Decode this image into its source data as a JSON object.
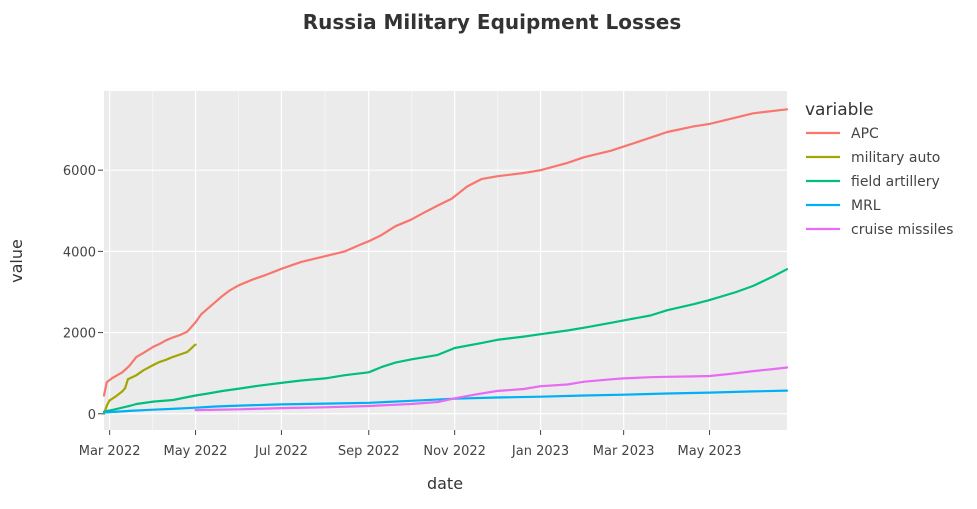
{
  "chart_data": {
    "type": "line",
    "title": "Russia Military Equipment Losses",
    "xlabel": "date",
    "ylabel": "value",
    "legend_title": "variable",
    "legend_position": "right",
    "grid": true,
    "xlim": [
      "2022-02-25",
      "2023-06-25"
    ],
    "ylim": [
      -400,
      7950
    ],
    "x_ticks": [
      {
        "date": "2022-03-01",
        "label": "Mar 2022"
      },
      {
        "date": "2022-05-01",
        "label": "May 2022"
      },
      {
        "date": "2022-07-01",
        "label": "Jul 2022"
      },
      {
        "date": "2022-09-01",
        "label": "Sep 2022"
      },
      {
        "date": "2022-11-01",
        "label": "Nov 2022"
      },
      {
        "date": "2023-01-01",
        "label": "Jan 2023"
      },
      {
        "date": "2023-03-01",
        "label": "Mar 2023"
      },
      {
        "date": "2023-05-01",
        "label": "May 2023"
      }
    ],
    "y_ticks": [
      {
        "value": 0,
        "label": "0"
      },
      {
        "value": 2000,
        "label": "2000"
      },
      {
        "value": 4000,
        "label": "4000"
      },
      {
        "value": 6000,
        "label": "6000"
      }
    ],
    "series": [
      {
        "name": "APC",
        "color": "#f8766d",
        "points": [
          [
            "2022-02-25",
            450
          ],
          [
            "2022-02-27",
            780
          ],
          [
            "2022-03-03",
            880
          ],
          [
            "2022-03-10",
            1020
          ],
          [
            "2022-03-15",
            1180
          ],
          [
            "2022-03-20",
            1400
          ],
          [
            "2022-03-25",
            1500
          ],
          [
            "2022-04-01",
            1650
          ],
          [
            "2022-04-05",
            1710
          ],
          [
            "2022-04-10",
            1810
          ],
          [
            "2022-04-15",
            1880
          ],
          [
            "2022-04-20",
            1940
          ],
          [
            "2022-04-25",
            2020
          ],
          [
            "2022-05-01",
            2250
          ],
          [
            "2022-05-05",
            2450
          ],
          [
            "2022-05-10",
            2600
          ],
          [
            "2022-05-15",
            2750
          ],
          [
            "2022-05-20",
            2900
          ],
          [
            "2022-05-25",
            3030
          ],
          [
            "2022-06-01",
            3170
          ],
          [
            "2022-06-10",
            3300
          ],
          [
            "2022-06-20",
            3420
          ],
          [
            "2022-07-01",
            3570
          ],
          [
            "2022-07-15",
            3740
          ],
          [
            "2022-08-01",
            3880
          ],
          [
            "2022-08-15",
            4000
          ],
          [
            "2022-08-25",
            4150
          ],
          [
            "2022-09-01",
            4250
          ],
          [
            "2022-09-10",
            4400
          ],
          [
            "2022-09-20",
            4620
          ],
          [
            "2022-10-01",
            4780
          ],
          [
            "2022-10-10",
            4950
          ],
          [
            "2022-10-20",
            5130
          ],
          [
            "2022-10-30",
            5300
          ],
          [
            "2022-11-10",
            5600
          ],
          [
            "2022-11-20",
            5780
          ],
          [
            "2022-12-01",
            5850
          ],
          [
            "2022-12-20",
            5930
          ],
          [
            "2023-01-01",
            6000
          ],
          [
            "2023-01-20",
            6180
          ],
          [
            "2023-02-01",
            6320
          ],
          [
            "2023-02-20",
            6480
          ],
          [
            "2023-03-01",
            6580
          ],
          [
            "2023-03-20",
            6800
          ],
          [
            "2023-04-01",
            6940
          ],
          [
            "2023-04-20",
            7080
          ],
          [
            "2023-05-01",
            7140
          ],
          [
            "2023-05-20",
            7300
          ],
          [
            "2023-06-01",
            7400
          ],
          [
            "2023-06-25",
            7500
          ]
        ]
      },
      {
        "name": "military auto",
        "color": "#a3a500",
        "points": [
          [
            "2022-02-25",
            0
          ],
          [
            "2022-02-27",
            200
          ],
          [
            "2022-03-01",
            330
          ],
          [
            "2022-03-05",
            420
          ],
          [
            "2022-03-10",
            550
          ],
          [
            "2022-03-12",
            630
          ],
          [
            "2022-03-14",
            850
          ],
          [
            "2022-03-20",
            950
          ],
          [
            "2022-03-25",
            1070
          ],
          [
            "2022-04-01",
            1200
          ],
          [
            "2022-04-05",
            1270
          ],
          [
            "2022-04-10",
            1330
          ],
          [
            "2022-04-15",
            1400
          ],
          [
            "2022-04-20",
            1460
          ],
          [
            "2022-04-25",
            1520
          ],
          [
            "2022-04-28",
            1610
          ],
          [
            "2022-04-30",
            1680
          ],
          [
            "2022-05-01",
            1700
          ]
        ]
      },
      {
        "name": "field artillery",
        "color": "#00bf7d",
        "points": [
          [
            "2022-02-25",
            50
          ],
          [
            "2022-03-05",
            110
          ],
          [
            "2022-03-15",
            190
          ],
          [
            "2022-03-20",
            240
          ],
          [
            "2022-04-01",
            300
          ],
          [
            "2022-04-15",
            340
          ],
          [
            "2022-05-01",
            450
          ],
          [
            "2022-05-10",
            500
          ],
          [
            "2022-05-20",
            560
          ],
          [
            "2022-06-01",
            620
          ],
          [
            "2022-06-15",
            690
          ],
          [
            "2022-07-01",
            760
          ],
          [
            "2022-07-15",
            820
          ],
          [
            "2022-08-01",
            870
          ],
          [
            "2022-08-15",
            950
          ],
          [
            "2022-09-01",
            1020
          ],
          [
            "2022-09-10",
            1150
          ],
          [
            "2022-09-20",
            1260
          ],
          [
            "2022-10-01",
            1340
          ],
          [
            "2022-10-20",
            1450
          ],
          [
            "2022-11-01",
            1620
          ],
          [
            "2022-11-20",
            1740
          ],
          [
            "2022-12-01",
            1820
          ],
          [
            "2022-12-20",
            1900
          ],
          [
            "2023-01-01",
            1960
          ],
          [
            "2023-01-20",
            2050
          ],
          [
            "2023-02-01",
            2120
          ],
          [
            "2023-02-20",
            2240
          ],
          [
            "2023-03-01",
            2300
          ],
          [
            "2023-03-20",
            2420
          ],
          [
            "2023-04-01",
            2550
          ],
          [
            "2023-04-20",
            2700
          ],
          [
            "2023-05-01",
            2800
          ],
          [
            "2023-05-20",
            3000
          ],
          [
            "2023-06-01",
            3150
          ],
          [
            "2023-06-15",
            3380
          ],
          [
            "2023-06-25",
            3560
          ]
        ]
      },
      {
        "name": "MRL",
        "color": "#00b0f6",
        "points": [
          [
            "2022-02-25",
            30
          ],
          [
            "2022-03-15",
            70
          ],
          [
            "2022-04-01",
            100
          ],
          [
            "2022-04-20",
            130
          ],
          [
            "2022-05-01",
            150
          ],
          [
            "2022-05-15",
            180
          ],
          [
            "2022-06-01",
            200
          ],
          [
            "2022-07-01",
            230
          ],
          [
            "2022-08-01",
            250
          ],
          [
            "2022-09-01",
            270
          ],
          [
            "2022-10-01",
            320
          ],
          [
            "2022-11-01",
            370
          ],
          [
            "2022-12-01",
            400
          ],
          [
            "2023-01-01",
            420
          ],
          [
            "2023-02-01",
            450
          ],
          [
            "2023-03-01",
            470
          ],
          [
            "2023-04-01",
            500
          ],
          [
            "2023-05-01",
            520
          ],
          [
            "2023-06-01",
            550
          ],
          [
            "2023-06-25",
            570
          ]
        ]
      },
      {
        "name": "cruise missiles",
        "color": "#e76bf3",
        "points": [
          [
            "2022-05-01",
            90
          ],
          [
            "2022-06-01",
            110
          ],
          [
            "2022-07-01",
            140
          ],
          [
            "2022-08-01",
            160
          ],
          [
            "2022-09-01",
            190
          ],
          [
            "2022-10-01",
            240
          ],
          [
            "2022-10-20",
            290
          ],
          [
            "2022-11-01",
            380
          ],
          [
            "2022-11-15",
            470
          ],
          [
            "2022-12-01",
            560
          ],
          [
            "2022-12-20",
            610
          ],
          [
            "2023-01-01",
            680
          ],
          [
            "2023-01-20",
            720
          ],
          [
            "2023-02-01",
            790
          ],
          [
            "2023-02-20",
            850
          ],
          [
            "2023-03-01",
            870
          ],
          [
            "2023-03-20",
            900
          ],
          [
            "2023-04-01",
            910
          ],
          [
            "2023-04-20",
            920
          ],
          [
            "2023-05-01",
            930
          ],
          [
            "2023-05-15",
            980
          ],
          [
            "2023-06-01",
            1050
          ],
          [
            "2023-06-15",
            1100
          ],
          [
            "2023-06-25",
            1140
          ]
        ]
      }
    ]
  }
}
